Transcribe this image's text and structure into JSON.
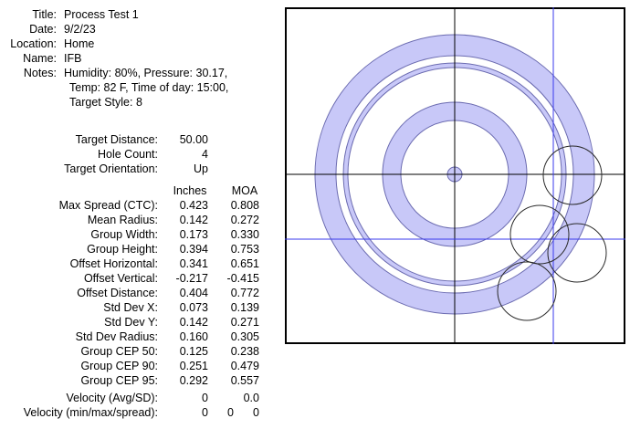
{
  "info": [
    {
      "label": "Title:",
      "value": "Process Test 1"
    },
    {
      "label": "Date:",
      "value": "9/2/23"
    },
    {
      "label": "Location:",
      "value": "Home"
    },
    {
      "label": "Name:",
      "value": "IFB"
    }
  ],
  "notes": {
    "label": "Notes:",
    "lines": [
      "Humidity: 80%, Pressure: 30.17,",
      "Temp: 82 F, Time of day: 15:00,",
      "Target Style: 8"
    ]
  },
  "setup": [
    {
      "label": "Target Distance:",
      "value": "50.00"
    },
    {
      "label": "Hole Count:",
      "value": "4"
    },
    {
      "label": "Target Orientation:",
      "value": "Up"
    }
  ],
  "columns": {
    "inches": "Inches",
    "moa": "MOA"
  },
  "stats": [
    {
      "label": "Max Spread (CTC):",
      "inches": "0.423",
      "moa": "0.808"
    },
    {
      "label": "Mean Radius:",
      "inches": "0.142",
      "moa": "0.272"
    },
    {
      "label": "Group Width:",
      "inches": "0.173",
      "moa": "0.330"
    },
    {
      "label": "Group Height:",
      "inches": "0.394",
      "moa": "0.753"
    },
    {
      "label": "Offset Horizontal:",
      "inches": "0.341",
      "moa": "0.651"
    },
    {
      "label": "Offset Vertical:",
      "inches": "-0.217",
      "moa": "-0.415"
    },
    {
      "label": "Offset Distance:",
      "inches": "0.404",
      "moa": "0.772"
    },
    {
      "label": "Std Dev X:",
      "inches": "0.073",
      "moa": "0.139"
    },
    {
      "label": "Std Dev Y:",
      "inches": "0.142",
      "moa": "0.271"
    },
    {
      "label": "Std Dev Radius:",
      "inches": "0.160",
      "moa": "0.305"
    },
    {
      "label": "Group CEP 50:",
      "inches": "0.125",
      "moa": "0.238"
    },
    {
      "label": "Group CEP 90:",
      "inches": "0.251",
      "moa": "0.479"
    },
    {
      "label": "Group CEP 95:",
      "inches": "0.292",
      "moa": "0.557"
    }
  ],
  "velocity_avg": {
    "label": "Velocity (Avg/SD):",
    "avg": "0",
    "sd": "0.0"
  },
  "velocity_spread": {
    "label": "Velocity (min/max/spread):",
    "min": "0",
    "max": "0",
    "spread": "0"
  },
  "colors": {
    "ring_fill": "#c8c8f8",
    "ring_stroke": "#6b6bb0",
    "crosshair": "#000000",
    "group_line": "#3a3aee",
    "hole_stroke": "#2a2a2a"
  }
}
